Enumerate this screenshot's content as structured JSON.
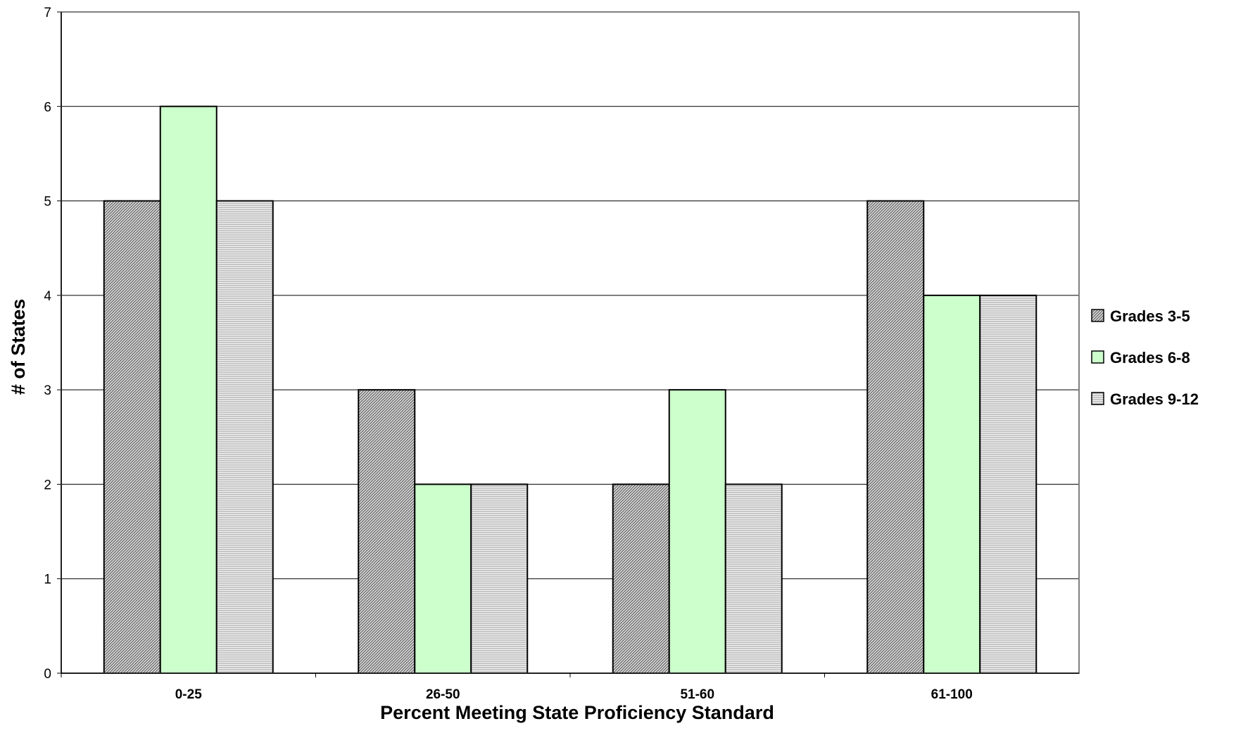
{
  "chart_data": {
    "type": "bar",
    "title": "",
    "xlabel": "Percent Meeting State Proficiency Standard",
    "ylabel": "# of States",
    "categories": [
      "0-25",
      "26-50",
      "51-60",
      "61-100"
    ],
    "series": [
      {
        "name": "Grades 3-5",
        "values": [
          5,
          3,
          2,
          5
        ],
        "color": "#bdbdbd",
        "pattern": "diagonal-hatch"
      },
      {
        "name": "Grades 6-8",
        "values": [
          6,
          2,
          3,
          4
        ],
        "color": "#ccffcc",
        "pattern": "solid"
      },
      {
        "name": "Grades 9-12",
        "values": [
          5,
          2,
          2,
          4
        ],
        "color": "#e0e0e0",
        "pattern": "horizontal-lines"
      }
    ],
    "ylim": [
      0,
      7
    ],
    "yticks": [
      0,
      1,
      2,
      3,
      4,
      5,
      6,
      7
    ],
    "grid": true,
    "legend_position": "right"
  }
}
